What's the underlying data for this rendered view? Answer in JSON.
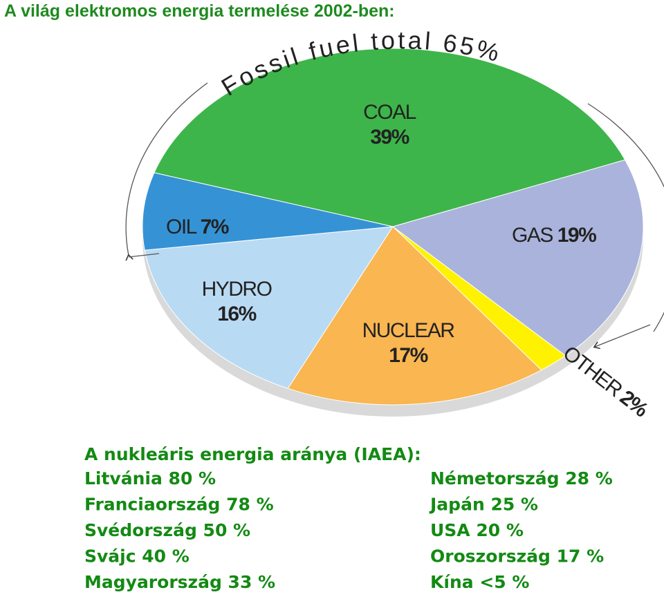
{
  "title": "A világ elektromos energia termelése 2002-ben:",
  "chart_data": {
    "type": "pie",
    "annotation": "Fossil fuel total 65%",
    "categories": [
      "COAL",
      "GAS",
      "OTHER",
      "NUCLEAR",
      "HYDRO",
      "OIL"
    ],
    "values": [
      39,
      19,
      2,
      17,
      16,
      7
    ],
    "value_labels": [
      "39%",
      "19%",
      "2%",
      "17%",
      "16%",
      "7%"
    ],
    "colors": [
      "#3db54a",
      "#aab3db",
      "#fff200",
      "#f9b651",
      "#b9daf3",
      "#3593d5"
    ]
  },
  "nuclear_share": {
    "heading": "A nukleáris energia aránya (IAEA):",
    "left": [
      "Litvánia 80 %",
      "Franciaország 78 %",
      "Svédország 50 %",
      "Svájc 40 %",
      "Magyarország 33 %"
    ],
    "right": [
      "Németország 28 %",
      "Japán 25 %",
      "USA 20 %",
      "Oroszország 17 %",
      "Kína <5 %"
    ]
  }
}
